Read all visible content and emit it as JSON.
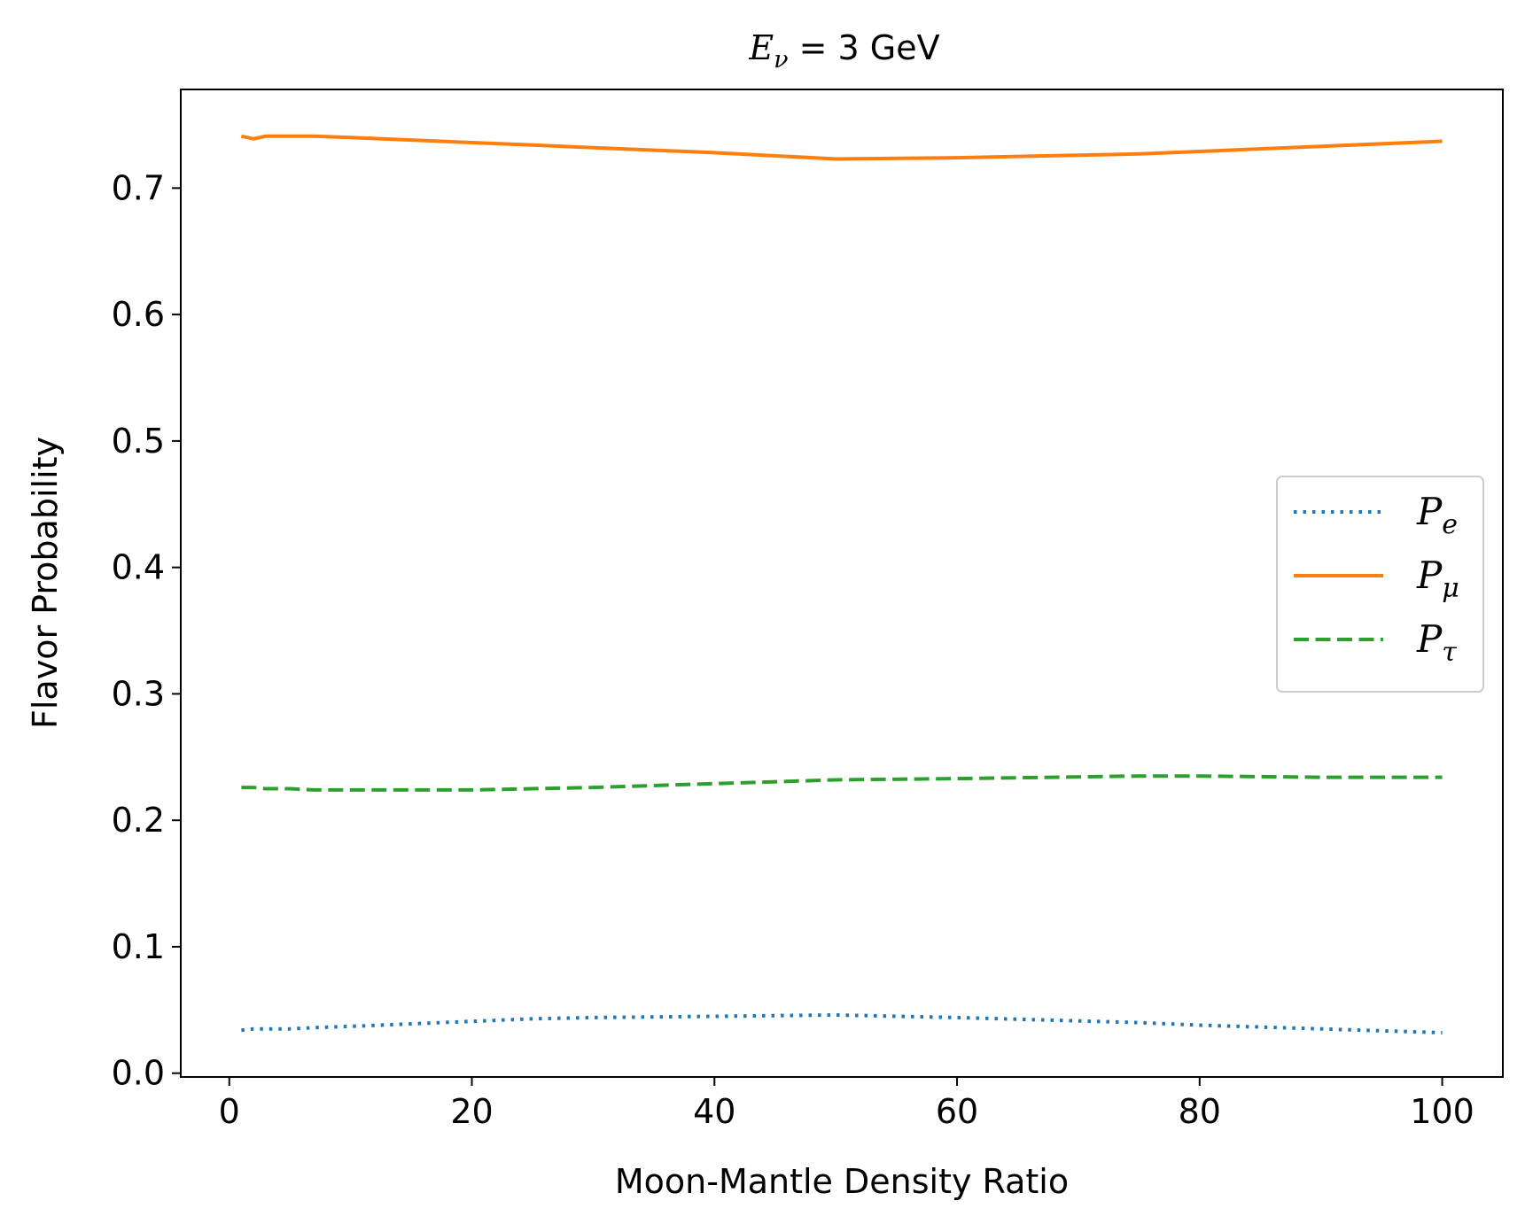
{
  "chart_data": {
    "type": "line",
    "title": "E_ν = 3 GeV",
    "title_parts": {
      "var": "E",
      "sub": "ν",
      "rest": " = 3 GeV"
    },
    "xlabel": "Moon-Mantle Density Ratio",
    "ylabel": "Flavor Probability",
    "xlim": [
      -4,
      105
    ],
    "ylim": [
      -0.003,
      0.778
    ],
    "xticks": [
      0,
      20,
      40,
      60,
      80,
      100
    ],
    "xtick_labels": [
      "0",
      "20",
      "40",
      "60",
      "80",
      "100"
    ],
    "yticks": [
      0.0,
      0.1,
      0.2,
      0.3,
      0.4,
      0.5,
      0.6,
      0.7
    ],
    "ytick_labels": [
      "0.0",
      "0.1",
      "0.2",
      "0.3",
      "0.4",
      "0.5",
      "0.6",
      "0.7"
    ],
    "grid": false,
    "legend_position": "center-right",
    "series": [
      {
        "name": "P_e",
        "label_main": "P",
        "label_sub": "e",
        "color": "#1f77b4",
        "style": "dotted",
        "x": [
          1,
          2,
          3,
          5,
          7,
          10,
          15,
          20,
          25,
          30,
          40,
          50,
          60,
          75,
          80,
          90,
          100
        ],
        "y": [
          0.034,
          0.035,
          0.035,
          0.035,
          0.036,
          0.037,
          0.039,
          0.041,
          0.043,
          0.044,
          0.045,
          0.046,
          0.044,
          0.04,
          0.038,
          0.035,
          0.032
        ]
      },
      {
        "name": "P_μ",
        "label_main": "P",
        "label_sub": "μ",
        "color": "#ff7f0e",
        "style": "solid",
        "x": [
          1,
          2,
          3,
          5,
          7,
          10,
          15,
          20,
          25,
          30,
          40,
          50,
          60,
          75,
          80,
          90,
          100
        ],
        "y": [
          0.741,
          0.739,
          0.741,
          0.741,
          0.741,
          0.74,
          0.738,
          0.736,
          0.734,
          0.732,
          0.728,
          0.723,
          0.724,
          0.727,
          0.729,
          0.733,
          0.737
        ]
      },
      {
        "name": "P_τ",
        "label_main": "P",
        "label_sub": "τ",
        "color": "#2ca02c",
        "style": "dashed",
        "x": [
          1,
          2,
          3,
          5,
          7,
          10,
          15,
          20,
          25,
          30,
          40,
          50,
          60,
          75,
          80,
          90,
          100
        ],
        "y": [
          0.226,
          0.226,
          0.225,
          0.225,
          0.224,
          0.224,
          0.224,
          0.224,
          0.225,
          0.226,
          0.229,
          0.232,
          0.233,
          0.235,
          0.235,
          0.234,
          0.234
        ]
      }
    ]
  }
}
